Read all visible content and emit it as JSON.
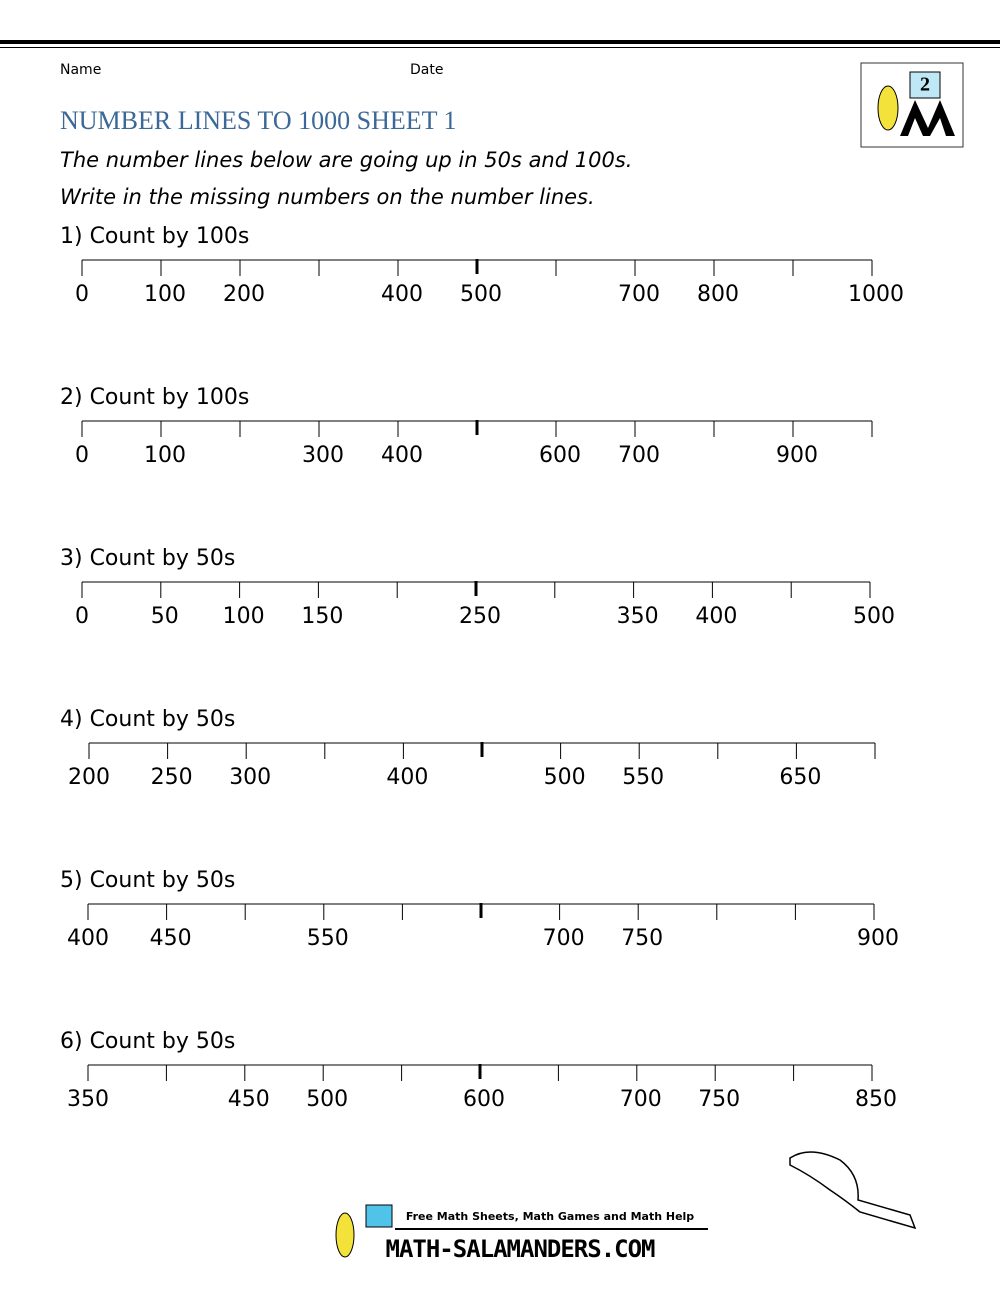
{
  "header": {
    "name_label": "Name",
    "date_label": "Date",
    "logo_label": "2",
    "title": "NUMBER LINES TO 1000 SHEET 1",
    "instructions": [
      "The number lines below are going up in 50s and 100s.",
      "Write in the missing numbers on the number lines."
    ]
  },
  "problems": [
    {
      "title": "1) Count by 100s",
      "labels": [
        "0",
        "100",
        "200",
        null,
        "400",
        "500",
        null,
        "700",
        "800",
        null,
        "1000"
      ]
    },
    {
      "title": "2) Count by 100s",
      "labels": [
        "0",
        "100",
        null,
        "300",
        "400",
        null,
        "600",
        "700",
        null,
        "900",
        null
      ]
    },
    {
      "title": "3) Count by 50s",
      "labels": [
        "0",
        "50",
        "100",
        "150",
        null,
        "250",
        null,
        "350",
        "400",
        null,
        "500"
      ]
    },
    {
      "title": "4) Count by 50s",
      "labels": [
        "200",
        "250",
        "300",
        null,
        "400",
        null,
        "500",
        "550",
        null,
        "650",
        null
      ]
    },
    {
      "title": "5) Count by 50s",
      "labels": [
        "400",
        "450",
        null,
        "550",
        null,
        null,
        "700",
        "750",
        null,
        null,
        "900"
      ]
    },
    {
      "title": "6) Count by 50s",
      "labels": [
        "350",
        null,
        "450",
        "500",
        null,
        "600",
        null,
        "700",
        "750",
        null,
        "850"
      ]
    }
  ],
  "footer": {
    "tagline": "Free Math Sheets, Math Games and Math Help",
    "site": "MATH-SALAMANDERS.COM"
  }
}
